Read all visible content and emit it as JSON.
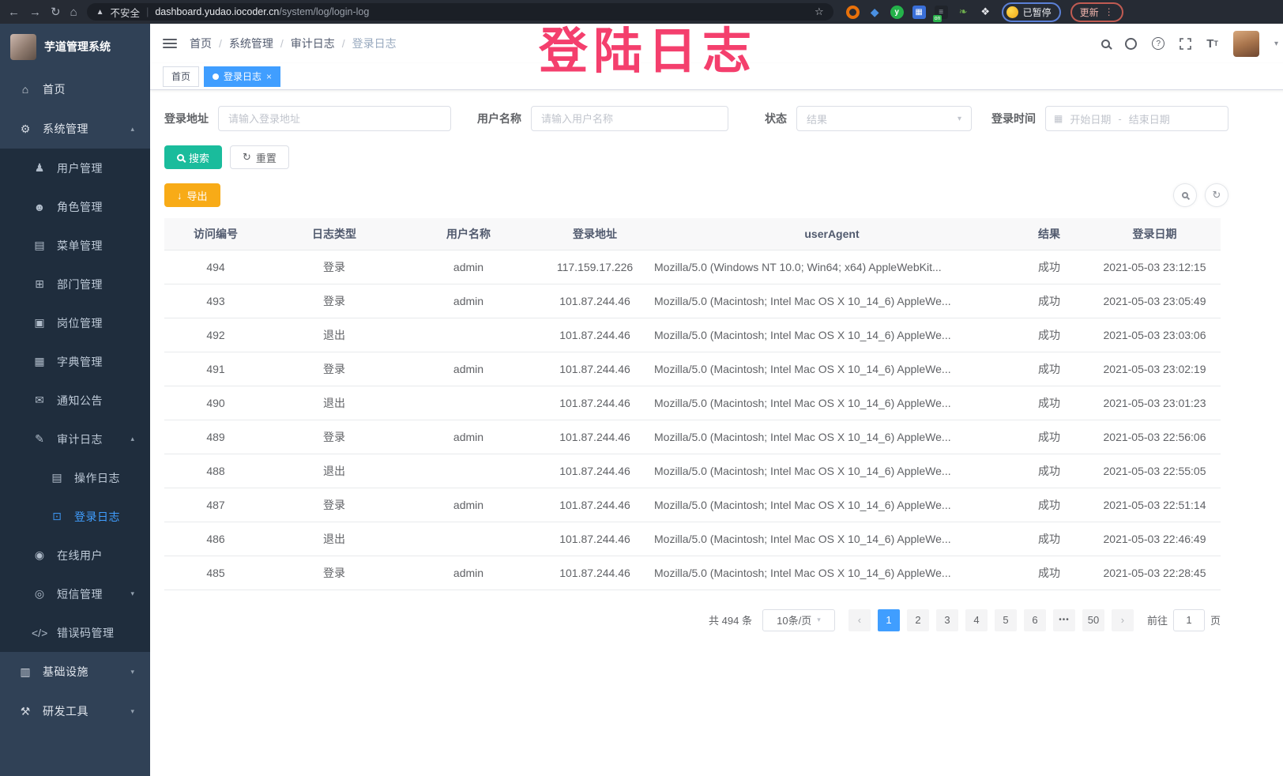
{
  "browser": {
    "security_label": "不安全",
    "url_host": "dashboard.yudao.iocoder.cn",
    "url_path": "/system/log/login-log",
    "paused_badge": "已暂停",
    "update_button": "更新"
  },
  "overlay": {
    "text": "登陆日志",
    "color": "#f43f6d"
  },
  "sidebar": {
    "logo_title": "芋道管理系统",
    "items": [
      {
        "label": "首页",
        "icon": "dashboard-icon",
        "glyph": "⌂",
        "level": 1
      },
      {
        "label": "系统管理",
        "icon": "gear-icon",
        "glyph": "⚙",
        "level": 1,
        "chevron": "up"
      },
      {
        "label": "用户管理",
        "icon": "user-icon",
        "glyph": "♟",
        "level": 2
      },
      {
        "label": "角色管理",
        "icon": "roles-icon",
        "glyph": "☻",
        "level": 2
      },
      {
        "label": "菜单管理",
        "icon": "menu-list-icon",
        "glyph": "▤",
        "level": 2
      },
      {
        "label": "部门管理",
        "icon": "department-icon",
        "glyph": "⊞",
        "level": 2
      },
      {
        "label": "岗位管理",
        "icon": "post-icon",
        "glyph": "▣",
        "level": 2
      },
      {
        "label": "字典管理",
        "icon": "dict-icon",
        "glyph": "▦",
        "level": 2
      },
      {
        "label": "通知公告",
        "icon": "announcement-icon",
        "glyph": "✉",
        "level": 2
      },
      {
        "label": "审计日志",
        "icon": "audit-log-icon",
        "glyph": "✎",
        "level": 2,
        "chevron": "up"
      },
      {
        "label": "操作日志",
        "icon": "operation-log-icon",
        "glyph": "▤",
        "level": 3
      },
      {
        "label": "登录日志",
        "icon": "login-log-icon",
        "glyph": "⊡",
        "level": 3,
        "active": true
      },
      {
        "label": "在线用户",
        "icon": "online-users-icon",
        "glyph": "◉",
        "level": 2
      },
      {
        "label": "短信管理",
        "icon": "sms-icon",
        "glyph": "◎",
        "level": 2,
        "chevron": "down"
      },
      {
        "label": "错误码管理",
        "icon": "error-code-icon",
        "glyph": "</>",
        "level": 2
      },
      {
        "label": "基础设施",
        "icon": "infrastructure-icon",
        "glyph": "▥",
        "level": 1,
        "chevron": "down"
      },
      {
        "label": "研发工具",
        "icon": "dev-tools-icon",
        "glyph": "⚒",
        "level": 1,
        "chevron": "down"
      }
    ]
  },
  "navbar": {
    "breadcrumb": [
      "首页",
      "系统管理",
      "审计日志",
      "登录日志"
    ]
  },
  "tags": [
    {
      "label": "首页",
      "active": false
    },
    {
      "label": "登录日志",
      "active": true,
      "closable": true
    }
  ],
  "filters": {
    "address_label": "登录地址",
    "address_placeholder": "请输入登录地址",
    "username_label": "用户名称",
    "username_placeholder": "请输入用户名称",
    "status_label": "状态",
    "status_placeholder": "结果",
    "time_label": "登录时间",
    "start_placeholder": "开始日期",
    "range_separator": "-",
    "end_placeholder": "结束日期",
    "search_button": "搜索",
    "reset_button": "重置"
  },
  "toolbar": {
    "export_button": "导出"
  },
  "table": {
    "columns": [
      "访问编号",
      "日志类型",
      "用户名称",
      "登录地址",
      "userAgent",
      "结果",
      "登录日期"
    ],
    "rows": [
      {
        "id": "494",
        "type": "登录",
        "username": "admin",
        "address": "117.159.17.226",
        "user_agent": "Mozilla/5.0 (Windows NT 10.0; Win64; x64) AppleWebKit...",
        "result": "成功",
        "date": "2021-05-03 23:12:15"
      },
      {
        "id": "493",
        "type": "登录",
        "username": "admin",
        "address": "101.87.244.46",
        "user_agent": "Mozilla/5.0 (Macintosh; Intel Mac OS X 10_14_6) AppleWe...",
        "result": "成功",
        "date": "2021-05-03 23:05:49"
      },
      {
        "id": "492",
        "type": "退出",
        "username": "",
        "address": "101.87.244.46",
        "user_agent": "Mozilla/5.0 (Macintosh; Intel Mac OS X 10_14_6) AppleWe...",
        "result": "成功",
        "date": "2021-05-03 23:03:06"
      },
      {
        "id": "491",
        "type": "登录",
        "username": "admin",
        "address": "101.87.244.46",
        "user_agent": "Mozilla/5.0 (Macintosh; Intel Mac OS X 10_14_6) AppleWe...",
        "result": "成功",
        "date": "2021-05-03 23:02:19"
      },
      {
        "id": "490",
        "type": "退出",
        "username": "",
        "address": "101.87.244.46",
        "user_agent": "Mozilla/5.0 (Macintosh; Intel Mac OS X 10_14_6) AppleWe...",
        "result": "成功",
        "date": "2021-05-03 23:01:23"
      },
      {
        "id": "489",
        "type": "登录",
        "username": "admin",
        "address": "101.87.244.46",
        "user_agent": "Mozilla/5.0 (Macintosh; Intel Mac OS X 10_14_6) AppleWe...",
        "result": "成功",
        "date": "2021-05-03 22:56:06"
      },
      {
        "id": "488",
        "type": "退出",
        "username": "",
        "address": "101.87.244.46",
        "user_agent": "Mozilla/5.0 (Macintosh; Intel Mac OS X 10_14_6) AppleWe...",
        "result": "成功",
        "date": "2021-05-03 22:55:05"
      },
      {
        "id": "487",
        "type": "登录",
        "username": "admin",
        "address": "101.87.244.46",
        "user_agent": "Mozilla/5.0 (Macintosh; Intel Mac OS X 10_14_6) AppleWe...",
        "result": "成功",
        "date": "2021-05-03 22:51:14"
      },
      {
        "id": "486",
        "type": "退出",
        "username": "",
        "address": "101.87.244.46",
        "user_agent": "Mozilla/5.0 (Macintosh; Intel Mac OS X 10_14_6) AppleWe...",
        "result": "成功",
        "date": "2021-05-03 22:46:49"
      },
      {
        "id": "485",
        "type": "登录",
        "username": "admin",
        "address": "101.87.244.46",
        "user_agent": "Mozilla/5.0 (Macintosh; Intel Mac OS X 10_14_6) AppleWe...",
        "result": "成功",
        "date": "2021-05-03 22:28:45"
      }
    ]
  },
  "pagination": {
    "total_text": "共 494 条",
    "page_size": "10条/页",
    "pages": [
      "1",
      "2",
      "3",
      "4",
      "5",
      "6",
      "•••",
      "50"
    ],
    "active_page": "1",
    "prev": "‹",
    "next": "›",
    "jump_prefix": "前往",
    "jump_value": "1",
    "jump_suffix": "页"
  },
  "colors": {
    "accent": "#409eff",
    "search_button": "#1abc9c",
    "export_button": "#f8ab17",
    "overlay": "#f43f6d",
    "sidebar_bg": "#304156",
    "submenu_bg": "#1f2d3d"
  }
}
